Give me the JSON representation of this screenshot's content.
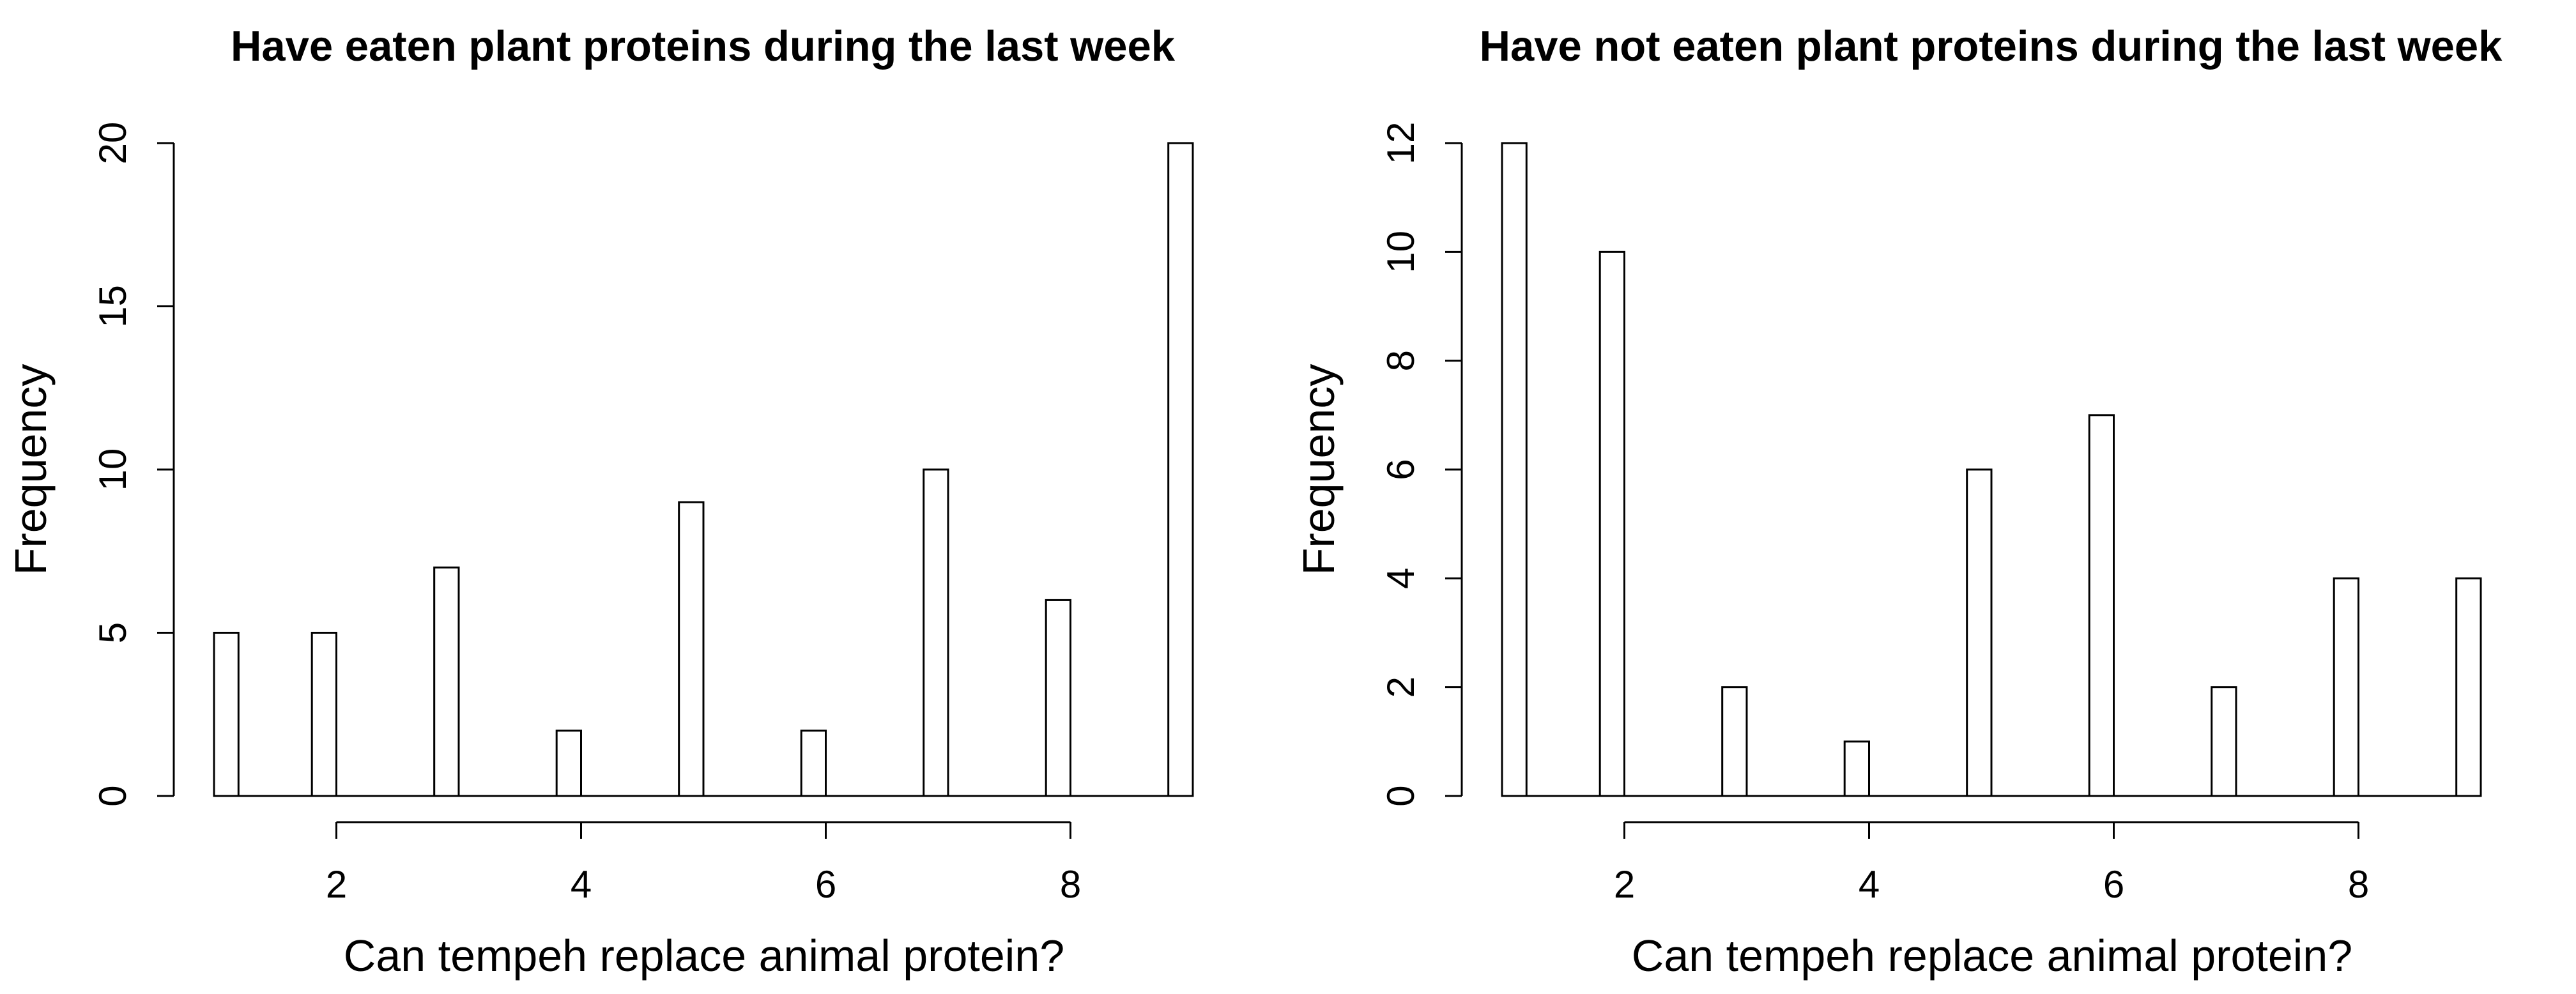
{
  "page": {
    "background_color": "#ffffff",
    "foreground_color": "#000000"
  },
  "chart_data": [
    {
      "type": "bar",
      "style": "histogram",
      "title": "Have eaten plant proteins during the last week",
      "xlabel": "Can tempeh replace animal protein?",
      "ylabel": "Frequency",
      "categories": [
        1,
        2,
        3,
        4,
        5,
        6,
        7,
        8,
        9
      ],
      "values": [
        5,
        5,
        7,
        2,
        9,
        2,
        10,
        6,
        20
      ],
      "x_ticks": [
        2,
        4,
        6,
        8
      ],
      "y_ticks": [
        0,
        5,
        10,
        15,
        20
      ],
      "xlim": [
        1,
        9
      ],
      "ylim": [
        0,
        20
      ],
      "bin_width": 0.2,
      "bar_fill": "#ffffff",
      "bar_stroke": "#000000",
      "axis_color": "#000000",
      "grid": false,
      "legend": "none"
    },
    {
      "type": "bar",
      "style": "histogram",
      "title": "Have not eaten plant proteins during the last week",
      "xlabel": "Can tempeh replace animal protein?",
      "ylabel": "Frequency",
      "categories": [
        1,
        2,
        3,
        4,
        5,
        6,
        7,
        8,
        9
      ],
      "values": [
        12,
        10,
        2,
        1,
        6,
        7,
        2,
        4,
        4
      ],
      "x_ticks": [
        2,
        4,
        6,
        8
      ],
      "y_ticks": [
        0,
        2,
        4,
        6,
        8,
        10,
        12
      ],
      "xlim": [
        1,
        9
      ],
      "ylim": [
        0,
        12
      ],
      "bin_width": 0.2,
      "bar_fill": "#ffffff",
      "bar_stroke": "#000000",
      "axis_color": "#000000",
      "grid": false,
      "legend": "none"
    }
  ]
}
